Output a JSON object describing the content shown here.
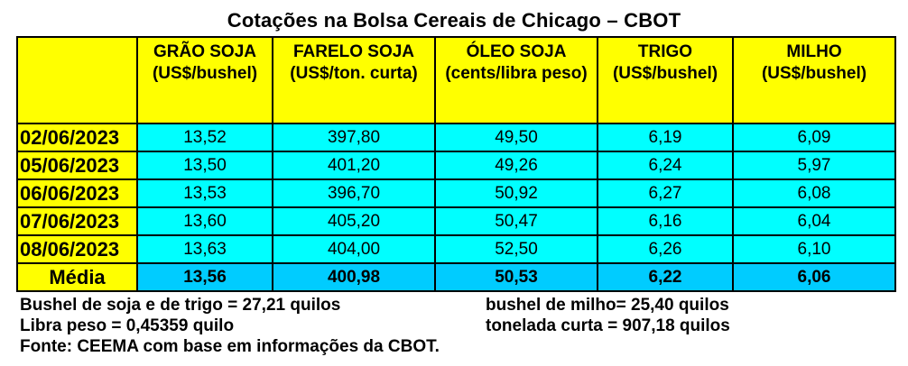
{
  "title": "Cotações na Bolsa Cereais de Chicago – CBOT",
  "columns": [
    {
      "name": "",
      "unit": ""
    },
    {
      "name": "GRÃO SOJA",
      "unit": "(US$/bushel)"
    },
    {
      "name": "FARELO SOJA",
      "unit": "(US$/ton. curta)"
    },
    {
      "name": "ÓLEO SOJA",
      "unit": "(cents/libra peso)"
    },
    {
      "name": "TRIGO",
      "unit": "(US$/bushel)"
    },
    {
      "name": "MILHO",
      "unit": "(US$/bushel)"
    }
  ],
  "rows": [
    {
      "date": "02/06/2023",
      "values": [
        "13,52",
        "397,80",
        "49,50",
        "6,19",
        "6,09"
      ]
    },
    {
      "date": "05/06/2023",
      "values": [
        "13,50",
        "401,20",
        "49,26",
        "6,24",
        "5,97"
      ]
    },
    {
      "date": "06/06/2023",
      "values": [
        "13,53",
        "396,70",
        "50,92",
        "6,27",
        "6,08"
      ]
    },
    {
      "date": "07/06/2023",
      "values": [
        "13,60",
        "405,20",
        "50,47",
        "6,16",
        "6,04"
      ]
    },
    {
      "date": "08/06/2023",
      "values": [
        "13,63",
        "404,00",
        "52,50",
        "6,26",
        "6,10"
      ]
    }
  ],
  "average": {
    "label": "Média",
    "values": [
      "13,56",
      "400,98",
      "50,53",
      "6,22",
      "6,06"
    ]
  },
  "notes": {
    "bushel_soja_trigo": "Bushel de soja e de trigo = 27,21 quilos",
    "bushel_milho": "bushel de milho= 25,40 quilos",
    "libra_peso": "Libra peso = 0,45359 quilo",
    "tonelada_curta": "tonelada curta = 907,18 quilos",
    "fonte": "Fonte: CEEMA com base em informações da CBOT."
  },
  "colors": {
    "header_bg": "#ffff00",
    "value_bg": "#00ffff",
    "average_bg": "#00ccff"
  }
}
